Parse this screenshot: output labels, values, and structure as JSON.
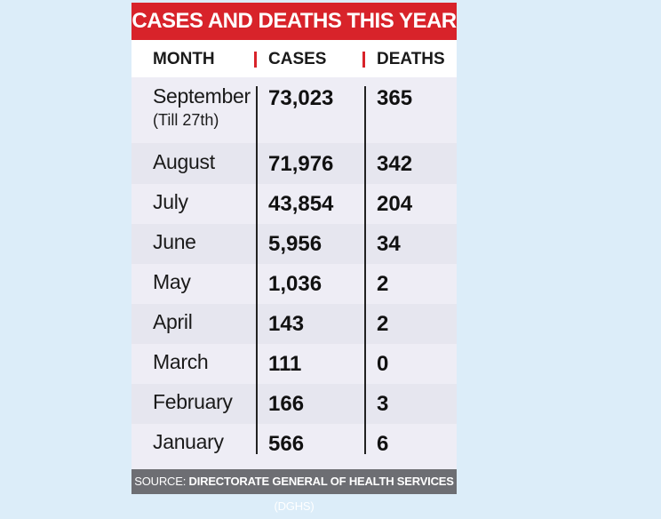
{
  "title": "CASES AND DEATHS THIS YEAR",
  "headers": {
    "month": "MONTH",
    "cases": "CASES",
    "deaths": "DEATHS"
  },
  "rows": [
    {
      "month": "September",
      "note": "(Till 27th)",
      "cases": "73,023",
      "deaths": "365"
    },
    {
      "month": "August",
      "cases": "71,976",
      "deaths": "342"
    },
    {
      "month": "July",
      "cases": "43,854",
      "deaths": "204"
    },
    {
      "month": "June",
      "cases": "5,956",
      "deaths": "34"
    },
    {
      "month": "May",
      "cases": "1,036",
      "deaths": "2"
    },
    {
      "month": "April",
      "cases": "143",
      "deaths": "2"
    },
    {
      "month": "March",
      "cases": "111",
      "deaths": "0"
    },
    {
      "month": "February",
      "cases": "166",
      "deaths": "3"
    },
    {
      "month": "January",
      "cases": "566",
      "deaths": "6"
    }
  ],
  "source": {
    "prefix": "SOURCE: ",
    "name": "DIRECTORATE GENERAL OF HEALTH SERVICES",
    "abbr": " (DGHS)"
  },
  "colors": {
    "accent": "#d8232a",
    "background": "#dcedf9",
    "footer": "#6d6e73"
  }
}
